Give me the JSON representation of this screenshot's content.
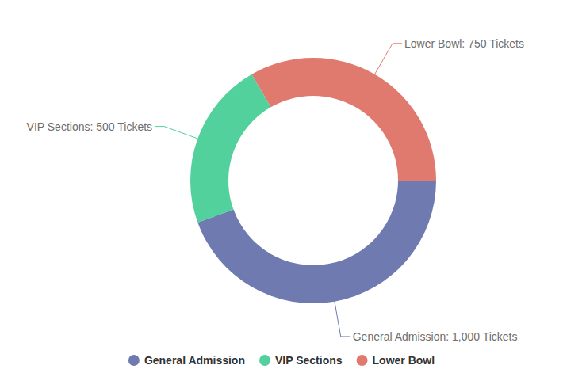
{
  "chart_data": {
    "type": "donut",
    "categories": [
      "General Admission",
      "VIP Sections",
      "Lower Bowl"
    ],
    "values": [
      1000,
      500,
      750
    ],
    "value_labels": [
      "General Admission: 1,000 Tickets",
      "VIP Sections: 500 Tickets",
      "Lower Bowl: 750 Tickets"
    ],
    "colors": [
      "#6e7ab0",
      "#52d19c",
      "#e07a6f"
    ],
    "data_labels": true,
    "legend": "bottom"
  }
}
